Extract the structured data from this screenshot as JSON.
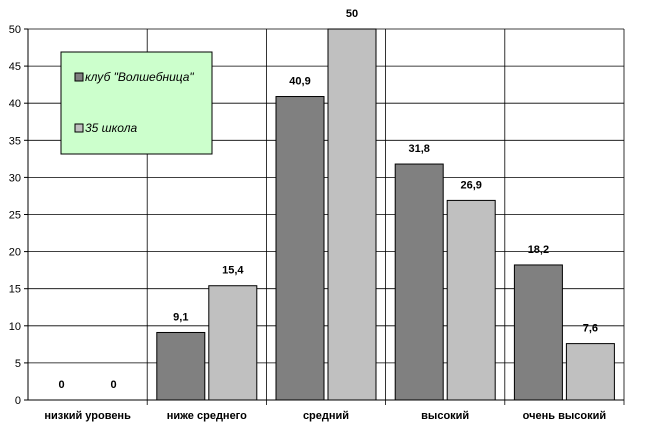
{
  "chart_data": {
    "type": "bar",
    "categories": [
      "низкий уровень",
      "ниже среднего",
      "средний",
      "высокий",
      "очень высокий"
    ],
    "series": [
      {
        "name": "клуб \"Волшебница\"",
        "color": "#808080",
        "values": [
          0,
          9.1,
          40.9,
          31.8,
          18.2
        ],
        "labels": [
          "0",
          "9,1",
          "40,9",
          "31,8",
          "18,2"
        ]
      },
      {
        "name": "35 школа",
        "color": "#c0c0c0",
        "values": [
          0,
          15.4,
          50,
          26.9,
          7.6
        ],
        "labels": [
          "0",
          "15,4",
          "50",
          "26,9",
          "7,6"
        ]
      }
    ],
    "yticks": [
      "0",
      "5",
      "10",
      "15",
      "20",
      "25",
      "30",
      "35",
      "40",
      "45",
      "50"
    ],
    "ylim": [
      0,
      50
    ],
    "grid": true,
    "legend": {
      "placement": "top-left",
      "background": "#ccffcc"
    }
  }
}
